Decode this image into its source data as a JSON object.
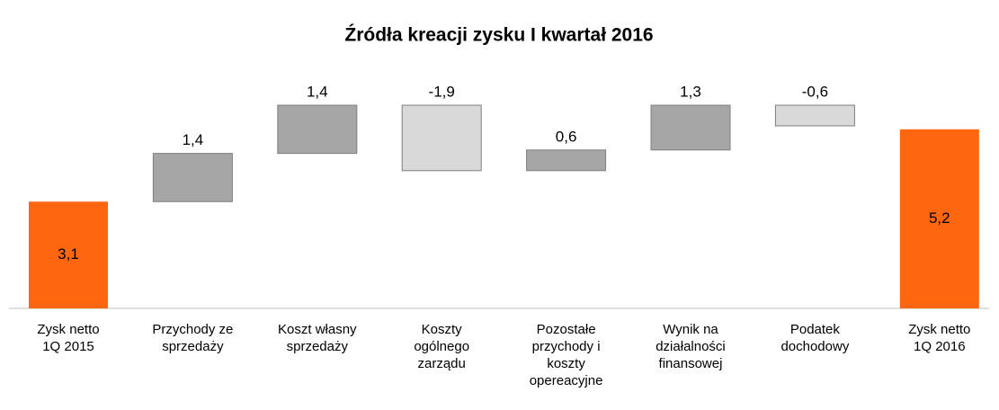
{
  "chart_data": {
    "type": "waterfall",
    "title": "Źródła kreacji zysku I kwartał 2016",
    "categories": [
      "Zysk netto\n1Q 2015",
      "Przychody ze\nsprzedaży",
      "Koszt własny\nsprzedaży",
      "Koszty\nogólnego\nzarządu",
      "Pozostałe\nprzychody i\nkoszty\nopereacyjne",
      "Wynik na\ndziałalności\nfinansowej",
      "Podatek\ndochodowy",
      "Zysk netto\n1Q 2016"
    ],
    "values": [
      3.1,
      1.4,
      1.4,
      -1.9,
      0.6,
      1.3,
      -0.6,
      5.2
    ],
    "value_labels": [
      "3,1",
      "1,4",
      "1,4",
      "-1,9",
      "0,6",
      "1,3",
      "-0,6",
      "5,2"
    ],
    "total_color": "#ff6610",
    "increase_color": "#a6a6a6",
    "decrease_color": "#d9d9d9"
  }
}
